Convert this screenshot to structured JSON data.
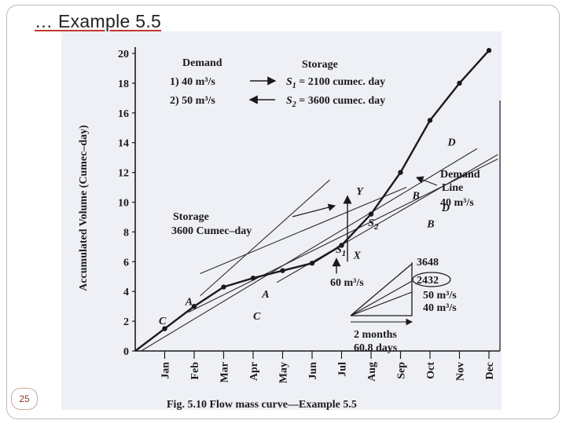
{
  "slide": {
    "title": "… Example 5.5",
    "page_number": "25"
  },
  "chart_data": {
    "type": "line",
    "title": "",
    "caption": "Fig. 5.10   Flow mass curve—Example 5.5",
    "ylabel": "Accumulated Volume (Cumec–day)",
    "xlabel": "",
    "categories": [
      "Jan",
      "Feb",
      "Mar",
      "Apr",
      "May",
      "Jun",
      "Jul",
      "Aug",
      "Sep",
      "Oct",
      "Nov",
      "Dec"
    ],
    "ylim": [
      0,
      20
    ],
    "yticks": [
      0,
      2,
      4,
      6,
      8,
      10,
      12,
      14,
      16,
      18,
      20
    ],
    "grid": false,
    "series": [
      {
        "values": [
          1.5,
          3.0,
          4.3,
          4.9,
          5.4,
          5.9,
          7.1,
          9.2,
          12.0,
          15.5,
          18.0,
          20.2
        ]
      }
    ],
    "lines": [
      {
        "x": [
          -0.8,
          10.6
        ],
        "y": [
          0.0,
          13.6
        ]
      },
      {
        "x": [
          0.8,
          11.3
        ],
        "y": [
          2.6,
          12.9
        ]
      },
      {
        "x": [
          3.8,
          11.3
        ],
        "y": [
          4.6,
          13.2
        ]
      },
      {
        "x": [
          1.2,
          8.2
        ],
        "y": [
          5.2,
          11.0
        ]
      },
      {
        "x": [
          1.2,
          5.6
        ],
        "y": [
          3.7,
          11.5
        ]
      }
    ],
    "point_labels": [
      {
        "text": "C",
        "x": -0.2,
        "y": 1.8
      },
      {
        "text": "A",
        "x": 0.7,
        "y": 3.1
      },
      {
        "text": "A",
        "x": 3.3,
        "y": 3.6
      },
      {
        "text": "C",
        "x": 3.0,
        "y": 2.1
      },
      {
        "text": "S",
        "sub": "1",
        "x": 5.8,
        "y": 6.6
      },
      {
        "text": "X",
        "x": 6.4,
        "y": 6.2
      },
      {
        "text": "S",
        "sub": "2",
        "x": 6.9,
        "y": 8.4
      },
      {
        "text": "Y",
        "x": 6.5,
        "y": 10.5
      },
      {
        "text": "B",
        "x": 8.4,
        "y": 10.2
      },
      {
        "text": "B",
        "x": 8.9,
        "y": 8.3
      },
      {
        "text": "D",
        "x": 9.6,
        "y": 13.8
      },
      {
        "text": "D",
        "x": 9.4,
        "y": 9.4
      }
    ],
    "annotations": {
      "demand_heading": "Demand",
      "storage_heading": "Storage",
      "demand_1": "1) 40 m³/s",
      "storage_1_sym": "S",
      "storage_1_sub": "1",
      "storage_1_val": "= 2100 cumec. day",
      "demand_2": "2) 50 m³/s",
      "storage_2_sym": "S",
      "storage_2_sub": "2",
      "storage_2_val": "= 3600 cumec. day",
      "storage_box_1": "Storage",
      "storage_box_2": "3600 Cumec–day",
      "demand_line_1": "Demand",
      "demand_line_2": "Line",
      "demand_line_3": "40 m³/s",
      "rate_60": "60 m³/s",
      "rate_50": "50 m³/s",
      "rate_40": "40 m³/s",
      "value_3648": "3648",
      "value_2432": "2432",
      "span_1": "2 months",
      "span_2": "60.8 days"
    }
  }
}
